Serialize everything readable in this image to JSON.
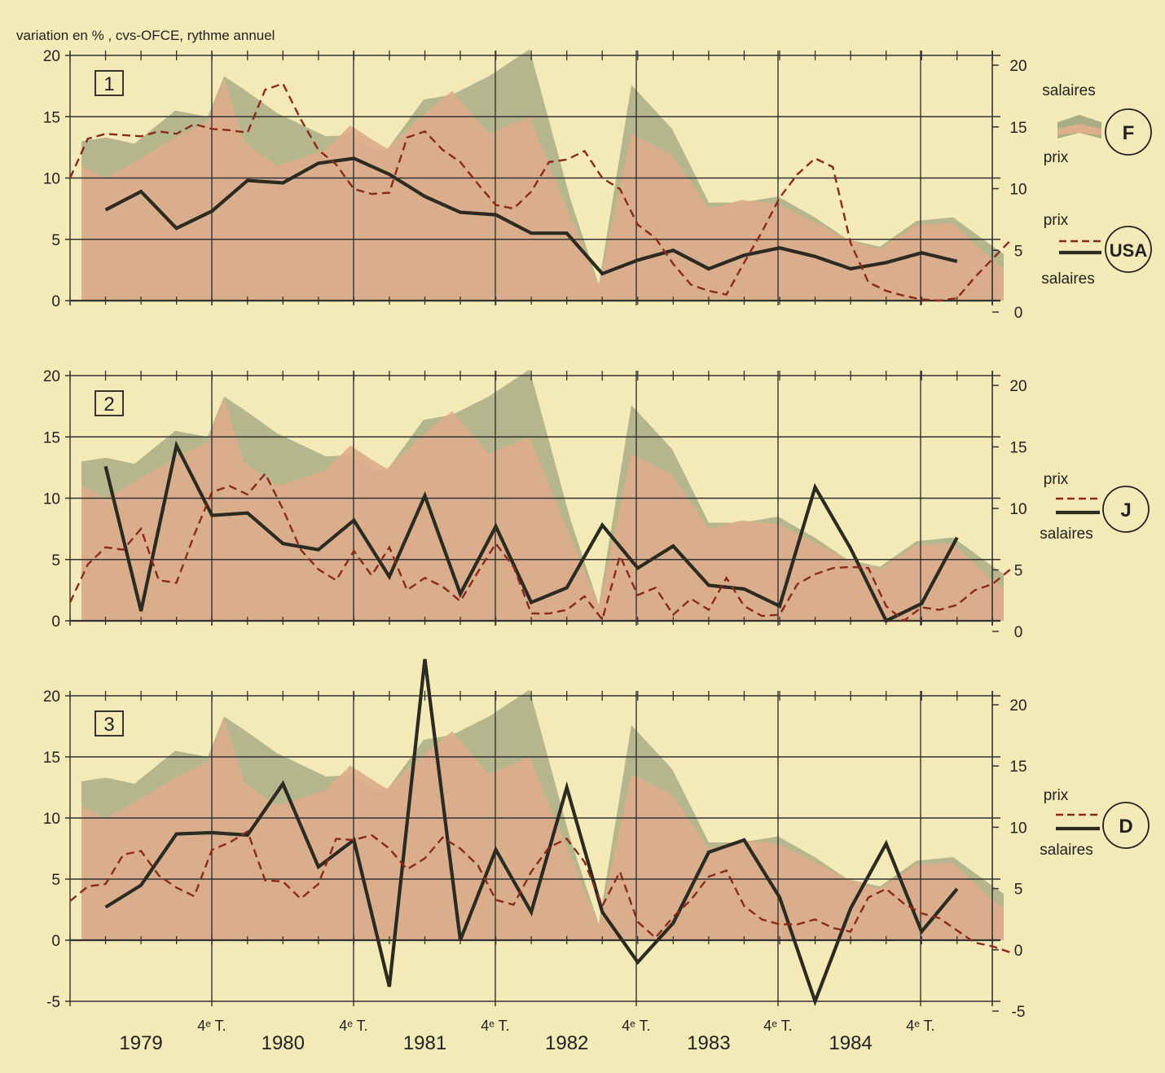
{
  "header": {
    "units_note": "variation en  % , cvs-OFCE, rythme annuel"
  },
  "x_axis": {
    "year_labels": [
      "1979",
      "1980",
      "1981",
      "1982",
      "1983",
      "1984"
    ],
    "quarter_marker": "4ᵉ T."
  },
  "colors": {
    "background": "#f3eab8",
    "salaires_area": "#a9ad85",
    "prix_area": "#dcae8c",
    "series_line": "#2b2b22",
    "dashed_line": "#8b2a1c",
    "grid": "#333333"
  },
  "chart_data": [
    {
      "type": "line",
      "panel_number": "1",
      "country": "F",
      "left_ticks": [
        "20",
        "15",
        "10",
        "5",
        "0"
      ],
      "right_ticks": [
        "20",
        "15",
        "10",
        "5",
        "0"
      ],
      "ylim": [
        0,
        20
      ],
      "legend": [
        {
          "name": "salaires",
          "style": "area"
        },
        {
          "name": "prix",
          "style": "area"
        },
        {
          "name": "prix",
          "style": "dashed"
        },
        {
          "name": "salaires",
          "style": "solid"
        }
      ],
      "country_label": "USA",
      "background_areas": "France salaires / prix (shaded)",
      "series": [
        {
          "name": "salaires",
          "style": "solid",
          "x": [
            1979.25,
            1979.5,
            1979.75,
            1980.0,
            1980.25,
            1980.5,
            1980.75,
            1981.0,
            1981.25,
            1981.5,
            1981.75,
            1982.0,
            1982.25,
            1982.5,
            1982.75,
            1983.0,
            1983.25,
            1983.5,
            1983.75,
            1984.0,
            1984.25,
            1984.5,
            1984.75,
            1985.0,
            1985.25
          ],
          "values": [
            7.4,
            8.9,
            5.9,
            7.3,
            9.8,
            9.6,
            11.2,
            11.6,
            10.3,
            8.5,
            7.2,
            7.0,
            5.5,
            5.5,
            2.2,
            3.3,
            4.1,
            2.6,
            3.7,
            4.3,
            3.6,
            2.6,
            3.1,
            3.9,
            3.2
          ]
        },
        {
          "name": "prix",
          "style": "dashed",
          "x": [
            1979.0,
            1979.125,
            1979.25,
            1979.375,
            1979.5,
            1979.625,
            1979.75,
            1979.875,
            1980.0,
            1980.125,
            1980.25,
            1980.375,
            1980.5,
            1980.625,
            1980.75,
            1980.875,
            1981.0,
            1981.125,
            1981.25,
            1981.375,
            1981.5,
            1981.625,
            1981.75,
            1981.875,
            1982.0,
            1982.125,
            1982.25,
            1982.375,
            1982.5,
            1982.625,
            1982.75,
            1982.875,
            1983.0,
            1983.125,
            1983.25,
            1983.375,
            1983.5,
            1983.625,
            1983.75,
            1983.875,
            1984.0,
            1984.125,
            1984.25,
            1984.375,
            1984.5,
            1984.625,
            1984.75,
            1984.875,
            1985.0,
            1985.125,
            1985.25,
            1985.375,
            1985.5,
            1985.625
          ],
          "values": [
            10,
            13.2,
            13.6,
            13.5,
            13.4,
            13.8,
            13.6,
            14.4,
            14.0,
            13.9,
            13.7,
            17.2,
            17.7,
            14.8,
            12.3,
            11.1,
            9.1,
            8.7,
            8.8,
            13.3,
            13.8,
            12.3,
            11.3,
            9.5,
            7.8,
            7.5,
            8.9,
            11.3,
            11.5,
            12.2,
            10.0,
            9.1,
            6.2,
            5.1,
            3.0,
            1.3,
            0.8,
            0.5,
            3.1,
            5.6,
            8.4,
            10.3,
            11.6,
            10.9,
            4.7,
            1.5,
            0.8,
            0.4,
            0.1,
            0,
            0.2,
            1.9,
            3.4,
            4.9
          ]
        }
      ]
    },
    {
      "type": "line",
      "panel_number": "2",
      "country": "J",
      "left_ticks": [
        "20",
        "15",
        "10",
        "5",
        "0"
      ],
      "right_ticks": [
        "20",
        "15",
        "10",
        "5",
        "0"
      ],
      "ylim": [
        0,
        20
      ],
      "legend": [
        {
          "name": "prix",
          "style": "dashed"
        },
        {
          "name": "salaires",
          "style": "solid"
        }
      ],
      "series": [
        {
          "name": "salaires",
          "style": "solid",
          "x": [
            1979.25,
            1979.5,
            1979.75,
            1980.0,
            1980.25,
            1980.5,
            1980.75,
            1981.0,
            1981.25,
            1981.5,
            1981.75,
            1982.0,
            1982.25,
            1982.5,
            1982.75,
            1983.0,
            1983.25,
            1983.5,
            1983.75,
            1984.0,
            1984.25,
            1984.5,
            1984.75,
            1985.0,
            1985.25
          ],
          "values": [
            12.6,
            0.8,
            14.3,
            8.6,
            8.8,
            6.3,
            5.8,
            8.2,
            3.6,
            10.2,
            2.2,
            7.7,
            1.5,
            2.7,
            7.8,
            4.3,
            6.1,
            2.9,
            2.6,
            1.2,
            10.9,
            5.9,
            0,
            1.4,
            6.8
          ]
        },
        {
          "name": "prix",
          "style": "dashed",
          "x": [
            1979.0,
            1979.125,
            1979.25,
            1979.375,
            1979.5,
            1979.625,
            1979.75,
            1979.875,
            1980.0,
            1980.125,
            1980.25,
            1980.375,
            1980.5,
            1980.625,
            1980.75,
            1980.875,
            1981.0,
            1981.125,
            1981.25,
            1981.375,
            1981.5,
            1981.625,
            1981.75,
            1981.875,
            1982.0,
            1982.125,
            1982.25,
            1982.375,
            1982.5,
            1982.625,
            1982.75,
            1982.875,
            1983.0,
            1983.125,
            1983.25,
            1983.375,
            1983.5,
            1983.625,
            1983.75,
            1983.875,
            1984.0,
            1984.125,
            1984.25,
            1984.375,
            1984.5,
            1984.625,
            1984.75,
            1984.875,
            1985.0,
            1985.125,
            1985.25,
            1985.375,
            1985.5,
            1985.625
          ],
          "values": [
            1.5,
            4.6,
            6.0,
            5.8,
            7.5,
            3.3,
            3.1,
            7.0,
            10.5,
            11.0,
            10.3,
            12.0,
            9.1,
            5.8,
            4.2,
            3.3,
            5.7,
            3.7,
            6.0,
            2.5,
            3.5,
            2.8,
            1.6,
            4.0,
            6.3,
            4.4,
            0.6,
            0.6,
            0.9,
            2.0,
            0.1,
            5.3,
            2.1,
            2.7,
            0.5,
            1.8,
            0.9,
            3.5,
            1.2,
            0.4,
            0.5,
            3.0,
            3.8,
            4.3,
            4.4,
            4.3,
            1.2,
            0,
            1.1,
            0.9,
            1.3,
            2.5,
            3.0,
            4.2
          ]
        }
      ]
    },
    {
      "type": "line",
      "panel_number": "3",
      "country": "D",
      "left_ticks": [
        "20",
        "15",
        "10",
        "5",
        "0",
        "-5"
      ],
      "right_ticks": [
        "20",
        "15",
        "10",
        "5",
        "0",
        "-5"
      ],
      "ylim": [
        -5,
        20
      ],
      "legend": [
        {
          "name": "prix",
          "style": "dashed"
        },
        {
          "name": "salaires",
          "style": "solid"
        }
      ],
      "series": [
        {
          "name": "salaires",
          "style": "solid",
          "x": [
            1979.25,
            1979.5,
            1979.75,
            1980.0,
            1980.25,
            1980.5,
            1980.75,
            1981.0,
            1981.25,
            1981.5,
            1981.75,
            1982.0,
            1982.25,
            1982.5,
            1982.75,
            1983.0,
            1983.25,
            1983.5,
            1983.75,
            1984.0,
            1984.25,
            1984.5,
            1984.75,
            1985.0,
            1985.25
          ],
          "values": [
            2.7,
            4.5,
            8.7,
            8.8,
            8.6,
            12.8,
            6.0,
            8.2,
            -3.8,
            23.0,
            0,
            7.4,
            2.3,
            12.5,
            2.3,
            -1.8,
            1.4,
            7.2,
            8.2,
            3.5,
            -5.0,
            2.6,
            7.9,
            0.7,
            4.2
          ]
        },
        {
          "name": "prix",
          "style": "dashed",
          "x": [
            1979.0,
            1979.125,
            1979.25,
            1979.375,
            1979.5,
            1979.625,
            1979.75,
            1979.875,
            1980.0,
            1980.125,
            1980.25,
            1980.375,
            1980.5,
            1980.625,
            1980.75,
            1980.875,
            1981.0,
            1981.125,
            1981.25,
            1981.375,
            1981.5,
            1981.625,
            1981.75,
            1981.875,
            1982.0,
            1982.125,
            1982.25,
            1982.375,
            1982.5,
            1982.625,
            1982.75,
            1982.875,
            1983.0,
            1983.125,
            1983.25,
            1983.375,
            1983.5,
            1983.625,
            1983.75,
            1983.875,
            1984.0,
            1984.125,
            1984.25,
            1984.375,
            1984.5,
            1984.625,
            1984.75,
            1984.875,
            1985.0,
            1985.125,
            1985.25,
            1985.375,
            1985.5,
            1985.625
          ],
          "values": [
            3.2,
            4.4,
            4.6,
            7.0,
            7.3,
            5.3,
            4.3,
            3.6,
            7.4,
            8.0,
            8.9,
            4.9,
            4.8,
            3.4,
            4.6,
            8.3,
            8.2,
            8.6,
            7.5,
            5.8,
            6.7,
            8.4,
            7.5,
            6.1,
            3.3,
            2.9,
            5.6,
            7.6,
            8.3,
            6.4,
            2.8,
            5.6,
            1.5,
            0.2,
            1.9,
            3.3,
            5.2,
            5.7,
            2.8,
            1.7,
            1.3,
            1.3,
            1.7,
            1.0,
            0.7,
            3.5,
            4.2,
            3.0,
            2.2,
            1.8,
            0.8,
            -0.2,
            -0.5,
            -1.0
          ]
        }
      ]
    }
  ]
}
